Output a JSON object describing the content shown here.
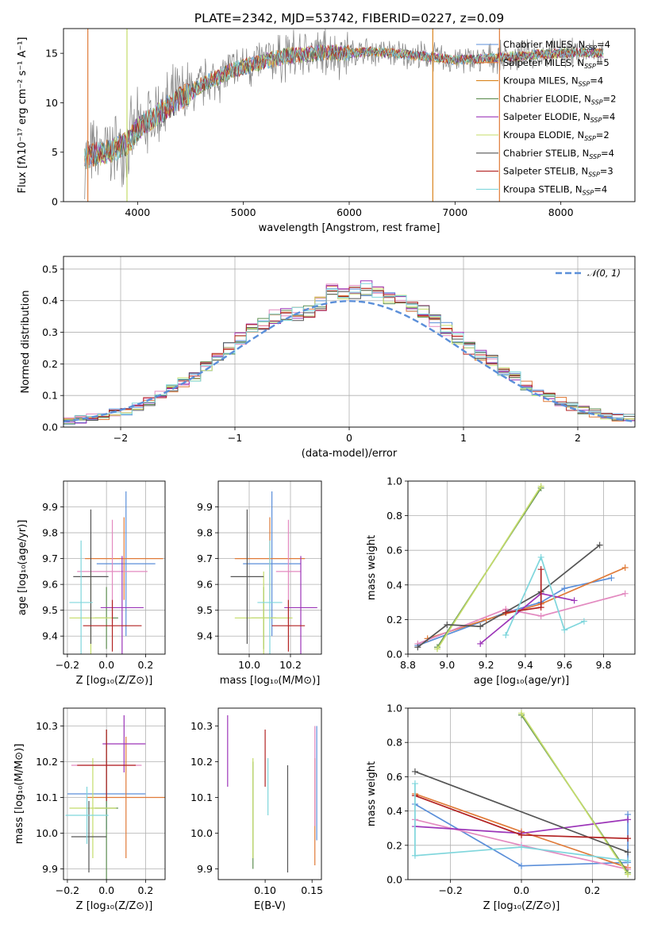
{
  "title": "PLATE=2342, MJD=53742, FIBERID=0227, z=0.09",
  "colors": {
    "chabrier_miles": "#5b8fd9",
    "salpeter_miles": "#e07b39",
    "kroupa_miles": "#d9841f",
    "chabrier_elodie": "#5f8f52",
    "salpeter_elodie": "#9c35b8",
    "kroupa_elodie": "#c4dc6a",
    "chabrier_stelib": "#555555",
    "salpeter_stelib": "#b22222",
    "kroupa_stelib": "#7fd6dc",
    "pink": "#e38ac0",
    "data_gray": "#7f7f7f"
  },
  "chart_data": [
    {
      "id": "spectrum",
      "type": "line",
      "title": "PLATE=2342, MJD=53742, FIBERID=0227, z=0.09",
      "xlabel": "wavelength [Angstrom, rest frame]",
      "ylabel": "Flux [fλ10⁻¹⁷ erg cm⁻² s⁻¹ A⁻¹]",
      "xlim": [
        3300,
        8700
      ],
      "ylim": [
        0,
        17.5
      ],
      "xticks": [
        "4000",
        "5000",
        "6000",
        "7000",
        "8000"
      ],
      "yticks": [
        "0",
        "5",
        "10",
        "15"
      ],
      "legend_position": "right",
      "legend": [
        "Chabrier MILES, N_SSP=4",
        "Salpeter MILES, N_SSP=5",
        "Kroupa MILES, N_SSP=4",
        "Chabrier ELODIE, N_SSP=2",
        "Salpeter ELODIE, N_SSP=4",
        "Kroupa ELODIE, N_SSP=2",
        "Chabrier STELIB, N_SSP=4",
        "Salpeter STELIB, N_SSP=3",
        "Kroupa STELIB, N_SSP=4"
      ],
      "continuum": {
        "x": [
          3500,
          3600,
          3700,
          3800,
          3900,
          4000,
          4100,
          4200,
          4300,
          4400,
          4500,
          4600,
          4700,
          4800,
          4900,
          5000,
          5200,
          5400,
          5600,
          5800,
          6000,
          6200,
          6400,
          6600,
          6800,
          7000,
          7200,
          7400,
          7600,
          7800,
          8000,
          8200,
          8400
        ],
        "y": [
          4.5,
          4.8,
          5.0,
          5.4,
          5.9,
          7.3,
          8.2,
          9.0,
          9.6,
          10.4,
          11.0,
          11.8,
          12.3,
          12.8,
          13.3,
          13.6,
          14.2,
          14.7,
          14.9,
          15.1,
          15.0,
          15.2,
          15.0,
          14.8,
          14.6,
          14.3,
          14.4,
          14.6,
          14.7,
          14.9,
          15.0,
          15.1,
          15.0
        ]
      }
    },
    {
      "id": "residuals",
      "type": "histogram",
      "xlabel": "(data-model)/error",
      "ylabel": "Normed distribution",
      "xlim": [
        -2.5,
        2.5
      ],
      "ylim": [
        0,
        0.54
      ],
      "xticks": [
        "−2",
        "−1",
        "0",
        "1",
        "2"
      ],
      "yticks": [
        "0.0",
        "0.1",
        "0.2",
        "0.3",
        "0.4",
        "0.5"
      ],
      "grid": true,
      "legend_position": "top-right",
      "legend": [
        "𝒩(0, 1)"
      ],
      "bin_edges": [
        -2.5,
        -2.4,
        -2.3,
        -2.2,
        -2.1,
        -2.0,
        -1.9,
        -1.8,
        -1.7,
        -1.6,
        -1.5,
        -1.4,
        -1.3,
        -1.2,
        -1.1,
        -1.0,
        -0.9,
        -0.8,
        -0.7,
        -0.6,
        -0.5,
        -0.4,
        -0.3,
        -0.2,
        -0.1,
        0.0,
        0.1,
        0.2,
        0.3,
        0.4,
        0.5,
        0.6,
        0.7,
        0.8,
        0.9,
        1.0,
        1.1,
        1.2,
        1.3,
        1.4,
        1.5,
        1.6,
        1.7,
        1.8,
        1.9,
        2.0,
        2.1,
        2.2,
        2.3,
        2.4,
        2.5
      ],
      "base_density": [
        0.02,
        0.025,
        0.03,
        0.035,
        0.045,
        0.05,
        0.065,
        0.08,
        0.1,
        0.12,
        0.14,
        0.16,
        0.19,
        0.22,
        0.25,
        0.28,
        0.31,
        0.33,
        0.35,
        0.36,
        0.36,
        0.37,
        0.39,
        0.44,
        0.42,
        0.43,
        0.44,
        0.43,
        0.41,
        0.4,
        0.38,
        0.37,
        0.34,
        0.31,
        0.28,
        0.25,
        0.23,
        0.21,
        0.18,
        0.16,
        0.13,
        0.11,
        0.095,
        0.08,
        0.065,
        0.055,
        0.045,
        0.035,
        0.03,
        0.03
      ]
    },
    {
      "id": "age_vs_Z",
      "type": "errorbar",
      "xlabel": "Z [log₁₀(Z/Z⊙)]",
      "ylabel": "age  [log₁₀(age/yr)]",
      "xlim": [
        -0.22,
        0.3
      ],
      "ylim": [
        9.33,
        10.0
      ],
      "xticks": [
        "−0.2",
        "0.0",
        "0.2"
      ],
      "yticks": [
        "9.4",
        "9.5",
        "9.6",
        "9.7",
        "9.8",
        "9.9"
      ],
      "grid": true,
      "points": [
        {
          "x": 0.1,
          "y": 9.68,
          "xerr": 0.15,
          "yerr": 0.28,
          "c": "chabrier_miles"
        },
        {
          "x": 0.09,
          "y": 9.7,
          "xerr": 0.2,
          "yerr": 0.16,
          "c": "salpeter_miles"
        },
        {
          "x": 0.03,
          "y": 9.65,
          "xerr": 0.18,
          "yerr": 0.2,
          "c": "pink"
        },
        {
          "x": 0.0,
          "y": 9.47,
          "xerr": 0.06,
          "yerr": 0.12,
          "c": "chabrier_elodie"
        },
        {
          "x": 0.08,
          "y": 9.51,
          "xerr": 0.11,
          "yerr": 0.2,
          "c": "salpeter_elodie"
        },
        {
          "x": -0.08,
          "y": 9.47,
          "xerr": 0.11,
          "yerr": 0.18,
          "c": "kroupa_elodie"
        },
        {
          "x": -0.08,
          "y": 9.63,
          "xerr": 0.09,
          "yerr": 0.26,
          "c": "chabrier_stelib"
        },
        {
          "x": 0.03,
          "y": 9.44,
          "xerr": 0.15,
          "yerr": 0.1,
          "c": "salpeter_stelib"
        },
        {
          "x": -0.13,
          "y": 9.53,
          "xerr": 0.06,
          "yerr": 0.24,
          "c": "kroupa_stelib"
        }
      ]
    },
    {
      "id": "age_vs_mass",
      "type": "errorbar",
      "xlabel": "mass [log₁₀(M/M⊙)]",
      "ylabel": "",
      "xlim": [
        9.85,
        10.35
      ],
      "ylim": [
        9.33,
        10.0
      ],
      "xticks": [
        "10.0",
        "10.2"
      ],
      "yticks": [
        "9.4",
        "9.5",
        "9.6",
        "9.7",
        "9.8",
        "9.9"
      ],
      "grid": true,
      "points": [
        {
          "x": 10.11,
          "y": 9.68,
          "xerr": 0.14,
          "yerr": 0.28,
          "c": "chabrier_miles"
        },
        {
          "x": 10.1,
          "y": 9.7,
          "xerr": 0.17,
          "yerr": 0.16,
          "c": "salpeter_miles"
        },
        {
          "x": 10.19,
          "y": 9.65,
          "xerr": 0.06,
          "yerr": 0.2,
          "c": "pink"
        },
        {
          "x": 10.07,
          "y": 9.47,
          "xerr": 0.06,
          "yerr": 0.12,
          "c": "chabrier_elodie"
        },
        {
          "x": 10.25,
          "y": 9.51,
          "xerr": 0.08,
          "yerr": 0.2,
          "c": "salpeter_elodie"
        },
        {
          "x": 10.07,
          "y": 9.47,
          "xerr": 0.14,
          "yerr": 0.18,
          "c": "kroupa_elodie"
        },
        {
          "x": 9.99,
          "y": 9.63,
          "xerr": 0.08,
          "yerr": 0.26,
          "c": "chabrier_stelib"
        },
        {
          "x": 10.19,
          "y": 9.44,
          "xerr": 0.08,
          "yerr": 0.1,
          "c": "salpeter_stelib"
        },
        {
          "x": 10.1,
          "y": 9.53,
          "xerr": 0.06,
          "yerr": 0.24,
          "c": "kroupa_stelib"
        }
      ]
    },
    {
      "id": "massweight_vs_age",
      "type": "line",
      "xlabel": "age  [log₁₀(age/yr)]",
      "ylabel": "mass weight",
      "xlim": [
        8.8,
        9.96
      ],
      "ylim": [
        0,
        1.0
      ],
      "xticks": [
        "8.8",
        "9.0",
        "9.2",
        "9.4",
        "9.6",
        "9.8"
      ],
      "yticks": [
        "0.0",
        "0.2",
        "0.4",
        "0.6",
        "0.8",
        "1.0"
      ],
      "grid": true,
      "series": [
        {
          "c": "chabrier_miles",
          "x": [
            8.85,
            9.3,
            9.48,
            9.6,
            9.84
          ],
          "y": [
            0.05,
            0.24,
            0.3,
            0.38,
            0.44
          ]
        },
        {
          "c": "salpeter_miles",
          "x": [
            8.9,
            9.2,
            9.48,
            9.91
          ],
          "y": [
            0.09,
            0.2,
            0.29,
            0.5
          ]
        },
        {
          "c": "pink",
          "x": [
            8.85,
            9.3,
            9.48,
            9.91
          ],
          "y": [
            0.06,
            0.26,
            0.22,
            0.35
          ]
        },
        {
          "c": "chabrier_elodie",
          "x": [
            8.95,
            9.48
          ],
          "y": [
            0.04,
            0.96
          ]
        },
        {
          "c": "salpeter_elodie",
          "x": [
            9.17,
            9.48,
            9.65
          ],
          "y": [
            0.06,
            0.35,
            0.31
          ]
        },
        {
          "c": "kroupa_elodie",
          "x": [
            8.95,
            9.48
          ],
          "y": [
            0.03,
            0.97
          ]
        },
        {
          "c": "chabrier_stelib",
          "x": [
            8.85,
            9.0,
            9.17,
            9.48,
            9.78
          ],
          "y": [
            0.04,
            0.17,
            0.16,
            0.36,
            0.63
          ]
        },
        {
          "c": "salpeter_stelib",
          "x": [
            9.3,
            9.48,
            9.48
          ],
          "y": [
            0.24,
            0.27,
            0.49
          ]
        },
        {
          "c": "kroupa_stelib",
          "x": [
            9.3,
            9.48,
            9.6,
            9.7
          ],
          "y": [
            0.11,
            0.56,
            0.14,
            0.19
          ]
        }
      ]
    },
    {
      "id": "mass_vs_Z",
      "type": "errorbar",
      "xlabel": "Z [log₁₀(Z/Z⊙)]",
      "ylabel": "mass [log₁₀(M/M⊙)]",
      "xlim": [
        -0.22,
        0.3
      ],
      "ylim": [
        9.87,
        10.35
      ],
      "xticks": [
        "−0.2",
        "0.0",
        "0.2"
      ],
      "yticks": [
        "9.9",
        "10.0",
        "10.1",
        "10.2",
        "10.3"
      ],
      "grid": true,
      "points": [
        {
          "x": 0.0,
          "y": 10.11,
          "xerr": 0.2,
          "yerr": 0.1,
          "c": "chabrier_miles"
        },
        {
          "x": 0.1,
          "y": 10.1,
          "xerr": 0.2,
          "yerr": 0.17,
          "c": "salpeter_miles"
        },
        {
          "x": 0.0,
          "y": 10.19,
          "xerr": 0.18,
          "yerr": 0.1,
          "c": "pink"
        },
        {
          "x": 0.0,
          "y": 10.07,
          "xerr": 0.06,
          "yerr": 0.22,
          "c": "chabrier_elodie"
        },
        {
          "x": 0.09,
          "y": 10.25,
          "xerr": 0.11,
          "yerr": 0.08,
          "c": "salpeter_elodie"
        },
        {
          "x": -0.07,
          "y": 10.07,
          "xerr": 0.12,
          "yerr": 0.14,
          "c": "kroupa_elodie"
        },
        {
          "x": -0.09,
          "y": 9.99,
          "xerr": 0.09,
          "yerr": 0.1,
          "c": "chabrier_stelib"
        },
        {
          "x": 0.0,
          "y": 10.19,
          "xerr": 0.15,
          "yerr": 0.1,
          "c": "salpeter_stelib"
        },
        {
          "x": -0.1,
          "y": 10.05,
          "xerr": 0.11,
          "yerr": 0.08,
          "c": "kroupa_stelib"
        }
      ]
    },
    {
      "id": "mass_vs_ebv",
      "type": "errorbar",
      "xlabel": "E(B-V)",
      "ylabel": "",
      "xlim": [
        0.05,
        0.16
      ],
      "ylim": [
        9.87,
        10.35
      ],
      "xticks": [
        "0.10",
        "0.15"
      ],
      "yticks": [
        "9.9",
        "10.0",
        "10.1",
        "10.2",
        "10.3"
      ],
      "grid": false,
      "points": [
        {
          "x": 0.155,
          "y": 10.14,
          "xerr": 0,
          "yerr": 0.16,
          "c": "chabrier_miles"
        },
        {
          "x": 0.153,
          "y": 10.06,
          "xerr": 0,
          "yerr": 0.15,
          "c": "salpeter_miles"
        },
        {
          "x": 0.153,
          "y": 10.16,
          "xerr": 0,
          "yerr": 0.14,
          "c": "pink"
        },
        {
          "x": 0.087,
          "y": 10.05,
          "xerr": 0,
          "yerr": 0.15,
          "c": "chabrier_elodie"
        },
        {
          "x": 0.06,
          "y": 10.23,
          "xerr": 0,
          "yerr": 0.1,
          "c": "salpeter_elodie"
        },
        {
          "x": 0.087,
          "y": 10.07,
          "xerr": 0,
          "yerr": 0.14,
          "c": "kroupa_elodie"
        },
        {
          "x": 0.124,
          "y": 10.04,
          "xerr": 0,
          "yerr": 0.15,
          "c": "chabrier_stelib"
        },
        {
          "x": 0.1,
          "y": 10.21,
          "xerr": 0,
          "yerr": 0.08,
          "c": "salpeter_stelib"
        },
        {
          "x": 0.103,
          "y": 10.13,
          "xerr": 0,
          "yerr": 0.08,
          "c": "kroupa_stelib"
        }
      ]
    },
    {
      "id": "massweight_vs_Z",
      "type": "line",
      "xlabel": "Z [log₁₀(Z/Z⊙)]",
      "ylabel": "mass weight",
      "xlim": [
        -0.32,
        0.32
      ],
      "ylim": [
        0,
        1.0
      ],
      "xticks": [
        "−0.2",
        "0.0",
        "0.2"
      ],
      "yticks": [
        "0.0",
        "0.2",
        "0.4",
        "0.6",
        "0.8",
        "1.0"
      ],
      "grid": true,
      "series": [
        {
          "c": "chabrier_miles",
          "x": [
            -0.3,
            0.0,
            0.3,
            0.3
          ],
          "y": [
            0.44,
            0.08,
            0.1,
            0.38
          ]
        },
        {
          "c": "salpeter_miles",
          "x": [
            -0.3,
            0.0,
            0.3
          ],
          "y": [
            0.5,
            0.28,
            0.07
          ]
        },
        {
          "c": "pink",
          "x": [
            -0.3,
            0.0,
            0.3
          ],
          "y": [
            0.35,
            0.2,
            0.06
          ]
        },
        {
          "c": "chabrier_elodie",
          "x": [
            0.0,
            0.3
          ],
          "y": [
            0.96,
            0.04
          ]
        },
        {
          "c": "salpeter_elodie",
          "x": [
            -0.3,
            0.0,
            0.3
          ],
          "y": [
            0.31,
            0.27,
            0.35
          ]
        },
        {
          "c": "kroupa_elodie",
          "x": [
            0.0,
            0.3
          ],
          "y": [
            0.97,
            0.03
          ]
        },
        {
          "c": "chabrier_stelib",
          "x": [
            -0.3,
            0.3
          ],
          "y": [
            0.63,
            0.16
          ]
        },
        {
          "c": "salpeter_stelib",
          "x": [
            -0.3,
            0.0,
            0.3
          ],
          "y": [
            0.49,
            0.26,
            0.24
          ]
        },
        {
          "c": "kroupa_stelib",
          "x": [
            -0.3,
            -0.3,
            0.0,
            0.3
          ],
          "y": [
            0.56,
            0.14,
            0.19,
            0.11
          ]
        }
      ]
    }
  ]
}
